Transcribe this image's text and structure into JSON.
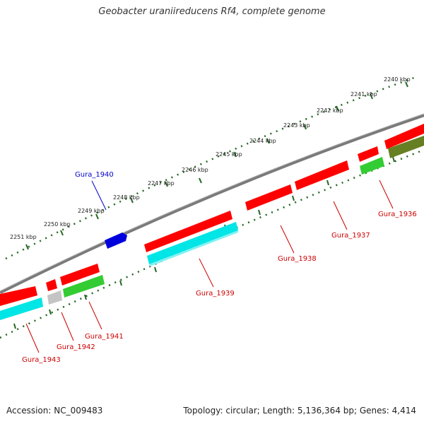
{
  "title": "Geobacter uraniireducens Rf4, complete genome",
  "footer": {
    "accession": "Accession: NC_009483",
    "summary": "Topology: circular; Length: 5,136,364 bp; Genes: 4,414"
  },
  "colors": {
    "backbone": "#777777",
    "red": "#ff0000",
    "cyan": "#00e5e5",
    "green": "#33cc33",
    "olive": "#667f22",
    "gray": "#c4c4c4",
    "blue": "#0000dd",
    "label_red": "#cc0000",
    "label_blue": "#0000cc",
    "tick": "#226622"
  },
  "scale_ticks": [
    {
      "kbp": 2240,
      "label": "2240 kbp"
    },
    {
      "kbp": 2241,
      "label": "2241 kbp"
    },
    {
      "kbp": 2242,
      "label": "2242 kbp"
    },
    {
      "kbp": 2243,
      "label": "2243 kbp"
    },
    {
      "kbp": 2244,
      "label": "2244 kbp"
    },
    {
      "kbp": 2245,
      "label": "2245 kbp"
    },
    {
      "kbp": 2246,
      "label": "2246 kbp"
    },
    {
      "kbp": 2247,
      "label": "2247 kbp"
    },
    {
      "kbp": 2248,
      "label": "2248 kbp"
    },
    {
      "kbp": 2249,
      "label": "2249 kbp"
    },
    {
      "kbp": 2250,
      "label": "2250 kbp"
    },
    {
      "kbp": 2251,
      "label": "2251 kbp"
    }
  ],
  "genes": [
    {
      "name": "Gura_1936",
      "label": "Gura_1936"
    },
    {
      "name": "Gura_1937",
      "label": "Gura_1937"
    },
    {
      "name": "Gura_1938",
      "label": "Gura_1938"
    },
    {
      "name": "Gura_1939",
      "label": "Gura_1939"
    },
    {
      "name": "Gura_1940",
      "label": "Gura_1940"
    },
    {
      "name": "Gura_1941",
      "label": "Gura_1941"
    },
    {
      "name": "Gura_1942",
      "label": "Gura_1942"
    },
    {
      "name": "Gura_1943",
      "label": "Gura_1943"
    }
  ]
}
